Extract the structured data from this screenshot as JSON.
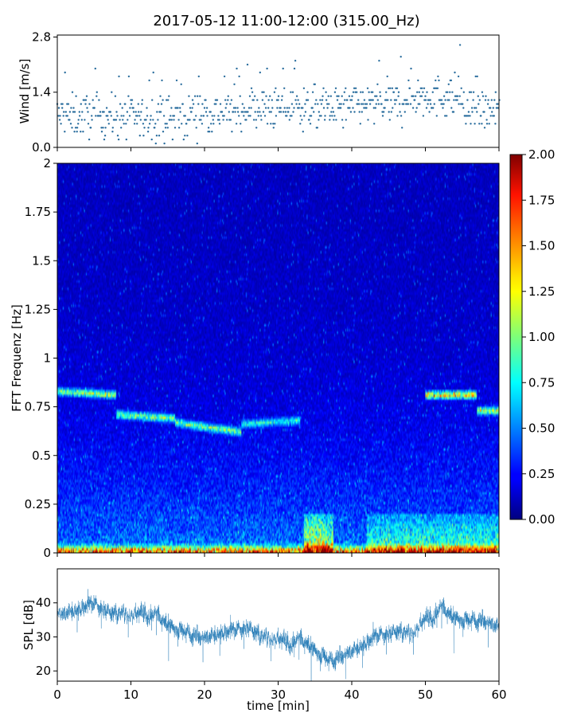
{
  "figure": {
    "title": "2017-05-12 11:00-12:00 (315.00_Hz)"
  },
  "colors": {
    "wind_marker": "#2b6e9e",
    "spl_line": "#1f77b4",
    "axes": "#000000"
  },
  "chart_data": [
    {
      "type": "scatter",
      "name": "wind-panel",
      "ylabel": "Wind [m/s]",
      "xlabel": "",
      "xlim": [
        0,
        60
      ],
      "ylim": [
        0,
        2.85
      ],
      "yticks": [
        0.0,
        1.4,
        2.8
      ],
      "ytick_labels": [
        "0.0",
        "1.4",
        "2.8"
      ],
      "xticks": [
        0,
        10,
        20,
        30,
        40,
        50,
        60
      ],
      "sample_interval_s": 10,
      "value_step": 0.1,
      "segments_minutes": [
        {
          "x": [
            0,
            8
          ],
          "y_mean": 0.8,
          "y_max": 2.0
        },
        {
          "x": [
            8,
            18
          ],
          "y_mean": 0.75,
          "y_max": 1.9
        },
        {
          "x": [
            18,
            25
          ],
          "y_mean": 0.9,
          "y_max": 2.0
        },
        {
          "x": [
            25,
            33
          ],
          "y_mean": 1.0,
          "y_max": 2.2
        },
        {
          "x": [
            33,
            40
          ],
          "y_mean": 1.0,
          "y_max": 2.1
        },
        {
          "x": [
            40,
            47
          ],
          "y_mean": 1.1,
          "y_max": 2.3
        },
        {
          "x": [
            47,
            55
          ],
          "y_mean": 1.3,
          "y_max": 2.8
        },
        {
          "x": [
            55,
            60
          ],
          "y_mean": 0.9,
          "y_max": 1.9
        }
      ]
    },
    {
      "type": "heatmap",
      "name": "spectrogram",
      "ylabel": "FFT Frequenz [Hz]",
      "xlabel": "",
      "xlim": [
        0,
        60
      ],
      "ylim": [
        0,
        2
      ],
      "yticks": [
        0,
        0.25,
        0.5,
        0.75,
        1,
        1.25,
        1.5,
        1.75,
        2
      ],
      "ytick_labels": [
        "0",
        "0.25",
        "0.5",
        "0.75",
        "1",
        "1.25",
        "1.5",
        "1.75",
        "2"
      ],
      "xticks": [
        0,
        10,
        20,
        30,
        40,
        50,
        60
      ],
      "colormap": "jet",
      "clim": [
        0,
        2
      ],
      "colorbar_ticks": [
        0.0,
        0.25,
        0.5,
        0.75,
        1.0,
        1.25,
        1.5,
        1.75,
        2.0
      ],
      "colorbar_tick_labels": [
        "0.00",
        "0.25",
        "0.50",
        "0.75",
        "1.00",
        "1.25",
        "1.50",
        "1.75",
        "2.00"
      ],
      "time_bins": 480,
      "freq_bins": 160,
      "features": [
        {
          "kind": "band",
          "t": [
            0,
            8
          ],
          "f_start": 0.83,
          "f_end": 0.81,
          "level": 1.0
        },
        {
          "kind": "band",
          "t": [
            8,
            16
          ],
          "f_start": 0.71,
          "f_end": 0.69,
          "level": 0.95
        },
        {
          "kind": "band",
          "t": [
            16,
            25
          ],
          "f_start": 0.67,
          "f_end": 0.62,
          "level": 0.9
        },
        {
          "kind": "band",
          "t": [
            25,
            33
          ],
          "f_start": 0.66,
          "f_end": 0.68,
          "level": 0.7
        },
        {
          "kind": "band",
          "t": [
            50,
            57
          ],
          "f_start": 0.81,
          "f_end": 0.81,
          "level": 1.3
        },
        {
          "kind": "band",
          "t": [
            57,
            60
          ],
          "f_start": 0.73,
          "f_end": 0.73,
          "level": 1.1
        },
        {
          "kind": "lowfreq",
          "t": [
            0,
            60
          ],
          "f_max": 0.05,
          "level": 1.4
        },
        {
          "kind": "patch",
          "t": [
            33.5,
            37.5
          ],
          "f": [
            0.0,
            0.2
          ],
          "level": 0.95
        },
        {
          "kind": "patch",
          "t": [
            42,
            60
          ],
          "f": [
            0.0,
            0.2
          ],
          "level": 0.55
        }
      ]
    },
    {
      "type": "line",
      "name": "spl-panel",
      "ylabel": "SPL [dB]",
      "xlabel": "time [min]",
      "xlim": [
        0,
        60
      ],
      "ylim": [
        17,
        50
      ],
      "yticks": [
        20,
        30,
        40
      ],
      "ytick_labels": [
        "20",
        "30",
        "40"
      ],
      "xticks": [
        0,
        10,
        20,
        30,
        40,
        50,
        60
      ],
      "xtick_labels": [
        "0",
        "10",
        "20",
        "30",
        "40",
        "50",
        "60"
      ],
      "trend": {
        "x": [
          0,
          3,
          5,
          8,
          10,
          12,
          14,
          16,
          18,
          20,
          22,
          24,
          26,
          28,
          30,
          32,
          34,
          36,
          37,
          38,
          40,
          42,
          44,
          46,
          48,
          50,
          52,
          54,
          56,
          58,
          60
        ],
        "y": [
          37,
          38,
          39,
          37,
          37,
          38,
          35,
          33,
          31,
          30,
          31,
          31,
          33,
          30,
          30,
          29,
          28,
          25,
          23,
          24,
          26,
          28,
          30,
          32,
          31,
          36,
          38,
          36,
          35,
          35,
          33
        ]
      }
    }
  ]
}
